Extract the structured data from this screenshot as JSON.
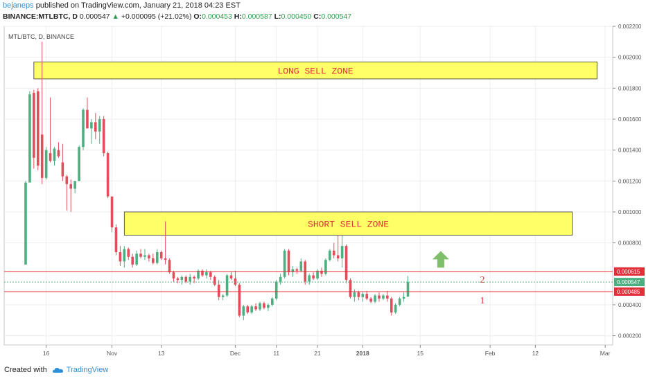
{
  "header": {
    "author": "bejaneps",
    "published": "published on TradingView.com, January 21, 2018 04:23 EST",
    "symbol": "BINANCE:MTLBTC, D",
    "last": "0.000547",
    "change_arrow": "▲",
    "change": "+0.000095 (+21.02%)",
    "o_label": "O:",
    "o_value": "0.000453",
    "h_label": "H:",
    "h_value": "0.000587",
    "l_label": "L:",
    "l_value": "0.000450",
    "c_label": "C:",
    "c_value": "0.000547"
  },
  "footer": {
    "created_with": "Created with",
    "brand": "TradingView"
  },
  "colors": {
    "up": "#4caf7f",
    "down": "#e04e5c",
    "zone_fill": "#ffff66",
    "zone_text": "#e0303a",
    "level_line": "#e0303a",
    "current_line": "#4caf7f",
    "arrow": "#7fbf6a"
  },
  "chart_data": {
    "type": "candlestick",
    "symbol_label": "MTL/BTC, D, BINANCE",
    "y_ticks": [
      "0.002200",
      "0.002000",
      "0.001800",
      "0.001600",
      "0.001400",
      "0.001200",
      "0.001000",
      "0.000800",
      "0.000400",
      "0.000200"
    ],
    "x_ticks": [
      {
        "label": "16",
        "date": "2017-10-16"
      },
      {
        "label": "Nov",
        "date": "2017-11-01"
      },
      {
        "label": "13",
        "date": "2017-11-13"
      },
      {
        "label": "Dec",
        "date": "2017-12-01"
      },
      {
        "label": "11",
        "date": "2017-12-11"
      },
      {
        "label": "21",
        "date": "2017-12-21"
      },
      {
        "label": "2018",
        "date": "2018-01-01"
      },
      {
        "label": "15",
        "date": "2018-01-15"
      },
      {
        "label": "Feb",
        "date": "2018-02-01"
      },
      {
        "label": "12",
        "date": "2018-02-12"
      },
      {
        "label": "Mar",
        "date": "2018-03-01"
      }
    ],
    "first_date": "2017-10-11",
    "ylim": [
      0.00014,
      0.0022
    ],
    "candles": [
      [
        0.00066,
        0.0012,
        0.00066,
        0.00119
      ],
      [
        0.00119,
        0.00178,
        0.00119,
        0.00176
      ],
      [
        0.00177,
        0.00179,
        0.00128,
        0.00135
      ],
      [
        0.00178,
        0.0018,
        0.00127,
        0.0013
      ],
      [
        0.0015,
        0.0021,
        0.00118,
        0.00122
      ],
      [
        0.00122,
        0.00142,
        0.00121,
        0.0014
      ],
      [
        0.00138,
        0.00174,
        0.00132,
        0.00133
      ],
      [
        0.00133,
        0.00142,
        0.0013,
        0.00141
      ],
      [
        0.0014,
        0.00145,
        0.00135,
        0.00136
      ],
      [
        0.00132,
        0.00144,
        0.0012,
        0.00123
      ],
      [
        0.00123,
        0.00124,
        0.00101,
        0.00118
      ],
      [
        0.00118,
        0.00121,
        0.001,
        0.00115
      ],
      [
        0.00115,
        0.0012,
        0.00112,
        0.0012
      ],
      [
        0.0012,
        0.00143,
        0.0012,
        0.00142
      ],
      [
        0.00142,
        0.00167,
        0.0014,
        0.00166
      ],
      [
        0.00166,
        0.00174,
        0.00154,
        0.00154
      ],
      [
        0.00154,
        0.0016,
        0.00144,
        0.00158
      ],
      [
        0.00158,
        0.00164,
        0.00147,
        0.00152
      ],
      [
        0.00152,
        0.00162,
        0.00144,
        0.0016
      ],
      [
        0.0016,
        0.00162,
        0.00136,
        0.00138
      ],
      [
        0.00138,
        0.00139,
        0.00109,
        0.0011
      ],
      [
        0.0011,
        0.0011,
        0.00087,
        0.0009
      ],
      [
        0.0009,
        0.00092,
        0.00072,
        0.00074
      ],
      [
        0.00074,
        0.00078,
        0.00065,
        0.00068
      ],
      [
        0.00068,
        0.00078,
        0.00064,
        0.00076
      ],
      [
        0.00076,
        0.00077,
        0.00069,
        0.00071
      ],
      [
        0.00071,
        0.00073,
        0.00064,
        0.00066
      ],
      [
        0.00066,
        0.00075,
        0.00065,
        0.00073
      ],
      [
        0.00073,
        0.00076,
        0.0007,
        0.00071
      ],
      [
        0.00071,
        0.00076,
        0.00069,
        0.00072
      ],
      [
        0.00072,
        0.00073,
        0.00068,
        0.0007
      ],
      [
        0.0007,
        0.00073,
        0.00066,
        0.00067
      ],
      [
        0.00067,
        0.00076,
        0.00066,
        0.00074
      ],
      [
        0.00074,
        0.00075,
        0.00069,
        0.0007
      ],
      [
        0.0007,
        0.00094,
        0.00066,
        0.00069
      ],
      [
        0.00069,
        0.0007,
        0.0006,
        0.00061
      ],
      [
        0.00061,
        0.00062,
        0.00055,
        0.00057
      ],
      [
        0.00057,
        0.00058,
        0.00054,
        0.00056
      ],
      [
        0.00056,
        0.00059,
        0.00053,
        0.00058
      ],
      [
        0.00058,
        0.00059,
        0.00054,
        0.00055
      ],
      [
        0.00055,
        0.0006,
        0.00053,
        0.00058
      ],
      [
        0.00058,
        0.00059,
        0.00054,
        0.00057
      ],
      [
        0.00057,
        0.00063,
        0.00056,
        0.00062
      ],
      [
        0.00062,
        0.00063,
        0.00058,
        0.00059
      ],
      [
        0.00059,
        0.00063,
        0.00057,
        0.00061
      ],
      [
        0.00061,
        0.00062,
        0.00056,
        0.00058
      ],
      [
        0.00058,
        0.00059,
        0.00052,
        0.00053
      ],
      [
        0.00053,
        0.00056,
        0.00043,
        0.00045
      ],
      [
        0.00045,
        0.00047,
        0.00043,
        0.00046
      ],
      [
        0.00046,
        0.0006,
        0.00045,
        0.00059
      ],
      [
        0.00059,
        0.00061,
        0.00056,
        0.00057
      ],
      [
        0.00057,
        0.00062,
        0.00052,
        0.00053
      ],
      [
        0.00053,
        0.00054,
        0.00032,
        0.00033
      ],
      [
        0.00033,
        0.0004,
        0.0003,
        0.00039
      ],
      [
        0.00039,
        0.0004,
        0.00034,
        0.00035
      ],
      [
        0.00035,
        0.0004,
        0.00034,
        0.00039
      ],
      [
        0.00039,
        0.00041,
        0.00036,
        0.00037
      ],
      [
        0.00037,
        0.00042,
        0.00036,
        0.00041
      ],
      [
        0.00041,
        0.00042,
        0.00037,
        0.00038
      ],
      [
        0.00038,
        0.00041,
        0.00036,
        0.0004
      ],
      [
        0.0004,
        0.00045,
        0.00039,
        0.00044
      ],
      [
        0.00044,
        0.00056,
        0.00043,
        0.00055
      ],
      [
        0.00055,
        0.0006,
        0.00053,
        0.00058
      ],
      [
        0.00058,
        0.00076,
        0.00057,
        0.00075
      ],
      [
        0.00075,
        0.00076,
        0.00059,
        0.00061
      ],
      [
        0.00061,
        0.00065,
        0.00058,
        0.00063
      ],
      [
        0.00063,
        0.00064,
        0.0006,
        0.00062
      ],
      [
        0.00062,
        0.0007,
        0.00061,
        0.00068
      ],
      [
        0.00068,
        0.00069,
        0.00053,
        0.00055
      ],
      [
        0.00055,
        0.0006,
        0.00053,
        0.00059
      ],
      [
        0.00059,
        0.00061,
        0.00056,
        0.00057
      ],
      [
        0.00057,
        0.00063,
        0.00056,
        0.00062
      ],
      [
        0.00062,
        0.00064,
        0.00058,
        0.0006
      ],
      [
        0.0006,
        0.0007,
        0.00059,
        0.00069
      ],
      [
        0.00069,
        0.00076,
        0.00068,
        0.00075
      ],
      [
        0.00075,
        0.0008,
        0.0007,
        0.00072
      ],
      [
        0.00072,
        0.00085,
        0.00068,
        0.0007
      ],
      [
        0.0007,
        0.00085,
        0.00064,
        0.00078
      ],
      [
        0.00078,
        0.00079,
        0.00054,
        0.00056
      ],
      [
        0.00056,
        0.00057,
        0.00044,
        0.00045
      ],
      [
        0.00045,
        0.0005,
        0.00042,
        0.00048
      ],
      [
        0.00048,
        0.00049,
        0.00043,
        0.00045
      ],
      [
        0.00045,
        0.00048,
        0.00042,
        0.00047
      ],
      [
        0.00047,
        0.00049,
        0.00043,
        0.00044
      ],
      [
        0.00044,
        0.00045,
        0.00041,
        0.00042
      ],
      [
        0.00042,
        0.00047,
        0.00041,
        0.00046
      ],
      [
        0.00046,
        0.00048,
        0.00042,
        0.00044
      ],
      [
        0.00044,
        0.00047,
        0.00043,
        0.00046
      ],
      [
        0.00046,
        0.00049,
        0.00042,
        0.00044
      ],
      [
        0.00044,
        0.00045,
        0.00033,
        0.00035
      ],
      [
        0.00035,
        0.00041,
        0.00034,
        0.0004
      ],
      [
        0.0004,
        0.00045,
        0.00039,
        0.00044
      ],
      [
        0.00044,
        0.00048,
        0.00042,
        0.00045
      ],
      [
        0.000453,
        0.000587,
        0.00045,
        0.000547
      ]
    ],
    "zones": [
      {
        "label": "LONG SELL ZONE",
        "from": 0.00186,
        "to": 0.00197,
        "start": "2017-10-13",
        "end": "2018-02-27"
      },
      {
        "label": "SHORT SELL ZONE",
        "from": 0.00085,
        "to": 0.001,
        "start": "2017-11-04",
        "end": "2018-02-21"
      }
    ],
    "levels": [
      {
        "value": 0.000615,
        "label": "2",
        "tag": "0.000615"
      },
      {
        "value": 0.000485,
        "label": "1",
        "tag": "0.000485"
      }
    ],
    "current": {
      "value": 0.000547,
      "tag": "0.000547"
    },
    "arrow_at": {
      "date": "2018-01-20",
      "value": 0.00064
    }
  }
}
